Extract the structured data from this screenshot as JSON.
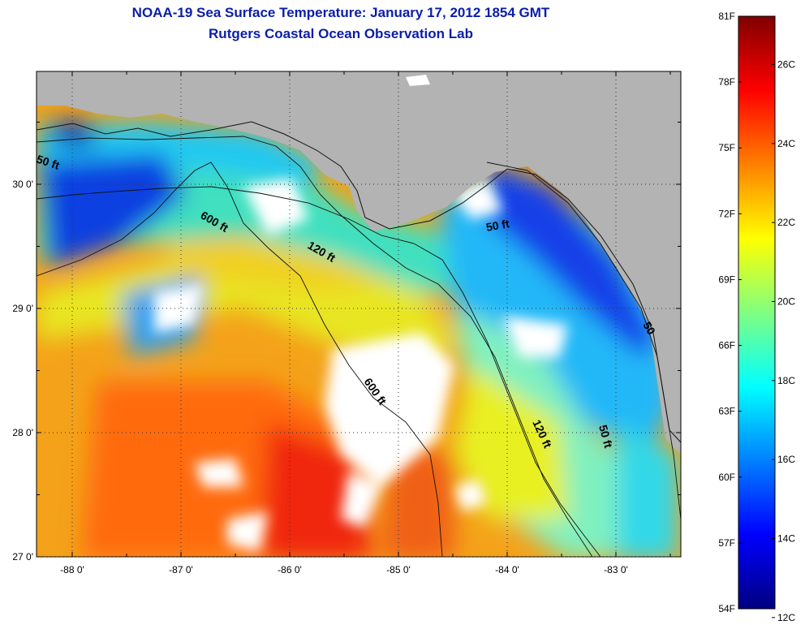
{
  "title": "NOAA-19 Sea Surface Temperature:  January 17, 2012 1854 GMT",
  "subtitle": "Rutgers Coastal Ocean Observation Lab",
  "x_ticks": [
    {
      "label": "-88 0'",
      "value": -88
    },
    {
      "label": "-87 0'",
      "value": -87
    },
    {
      "label": "-86 0'",
      "value": -86
    },
    {
      "label": "-85 0'",
      "value": -85
    },
    {
      "label": "-84 0'",
      "value": -84
    },
    {
      "label": "-83 0'",
      "value": -83
    }
  ],
  "y_ticks": [
    {
      "label": "30 0'",
      "value": 30
    },
    {
      "label": "29 0'",
      "value": 29
    },
    {
      "label": "28 0'",
      "value": 28
    },
    {
      "label": "27 0'",
      "value": 27
    }
  ],
  "contour_labels": {
    "c50_west": "50 ft",
    "c600_north": "600 ft",
    "c120_north": "120 ft",
    "c50_north": "50 ft",
    "c50_east": "50",
    "c600_south": "600 ft",
    "c120_south": "120 ft",
    "c50_south": "50 ft"
  },
  "colorbar": {
    "fahrenheit": [
      "81F",
      "78F",
      "75F",
      "72F",
      "69F",
      "66F",
      "63F",
      "60F",
      "57F",
      "54F"
    ],
    "celsius": [
      "26C",
      "24C",
      "22C",
      "20C",
      "18C",
      "16C",
      "14C",
      "12C"
    ],
    "colors": [
      "#800000",
      "#ff0000",
      "#ff8000",
      "#ffff00",
      "#80ff80",
      "#00ffff",
      "#0080ff",
      "#0000ff",
      "#000080"
    ]
  }
}
